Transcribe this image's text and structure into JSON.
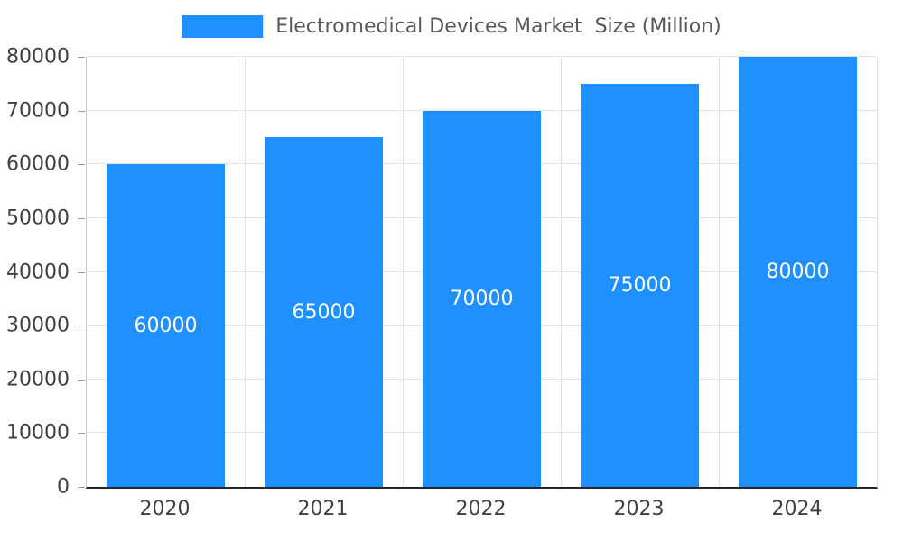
{
  "chart_data": {
    "type": "bar",
    "title": "Electromedical Devices Market  Size (Million)",
    "categories": [
      "2020",
      "2021",
      "2022",
      "2023",
      "2024"
    ],
    "values": [
      60000,
      65000,
      70000,
      75000,
      80000
    ],
    "series": [
      {
        "name": "Electromedical Devices Market  Size (Million)",
        "values": [
          60000,
          65000,
          70000,
          75000,
          80000
        ]
      }
    ],
    "xlabel": "",
    "ylabel": "",
    "ylim": [
      0,
      80000
    ],
    "yticks": [
      0,
      10000,
      20000,
      30000,
      40000,
      50000,
      60000,
      70000,
      80000
    ],
    "grid": true,
    "legend_position": "top-center",
    "bar_color": "#1E90FF",
    "bar_label_color": "#ffffff",
    "tick_label_color": "#404040",
    "legend_text_color": "#595959",
    "gridline_color": "#e3e3e3"
  },
  "legend": {
    "label": "Electromedical Devices Market  Size (Million)",
    "swatch_color": "#1E90FF"
  }
}
